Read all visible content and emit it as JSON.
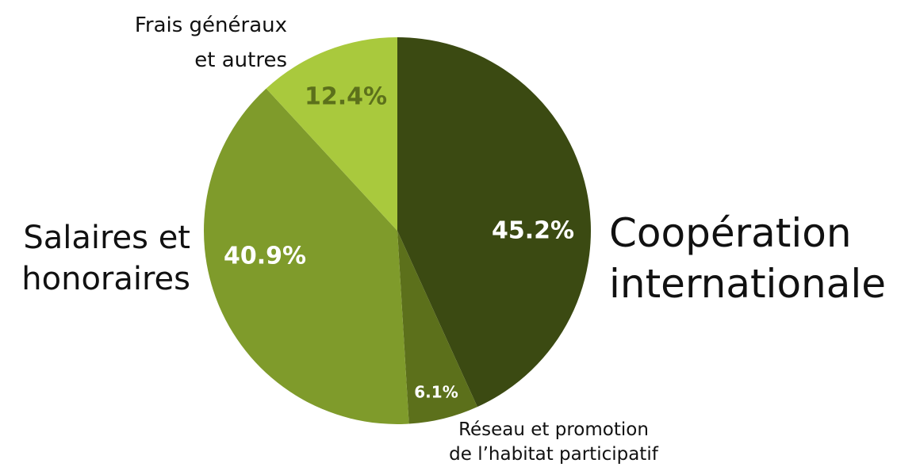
{
  "chart_data": {
    "type": "pie",
    "categories": [
      "Coopération\ninternationale",
      "Réseau et promotion\nde l’habitat participatif",
      "Salaires et\nhonoraires",
      "Frais généraux\net autres"
    ],
    "values": [
      45.2,
      6.1,
      40.9,
      12.4
    ],
    "value_labels": [
      "45.2%",
      "6.1%",
      "40.9%",
      "12.4%"
    ],
    "colors": [
      "#3b4a12",
      "#5c701b",
      "#7f9b2b",
      "#a9c93d"
    ]
  }
}
